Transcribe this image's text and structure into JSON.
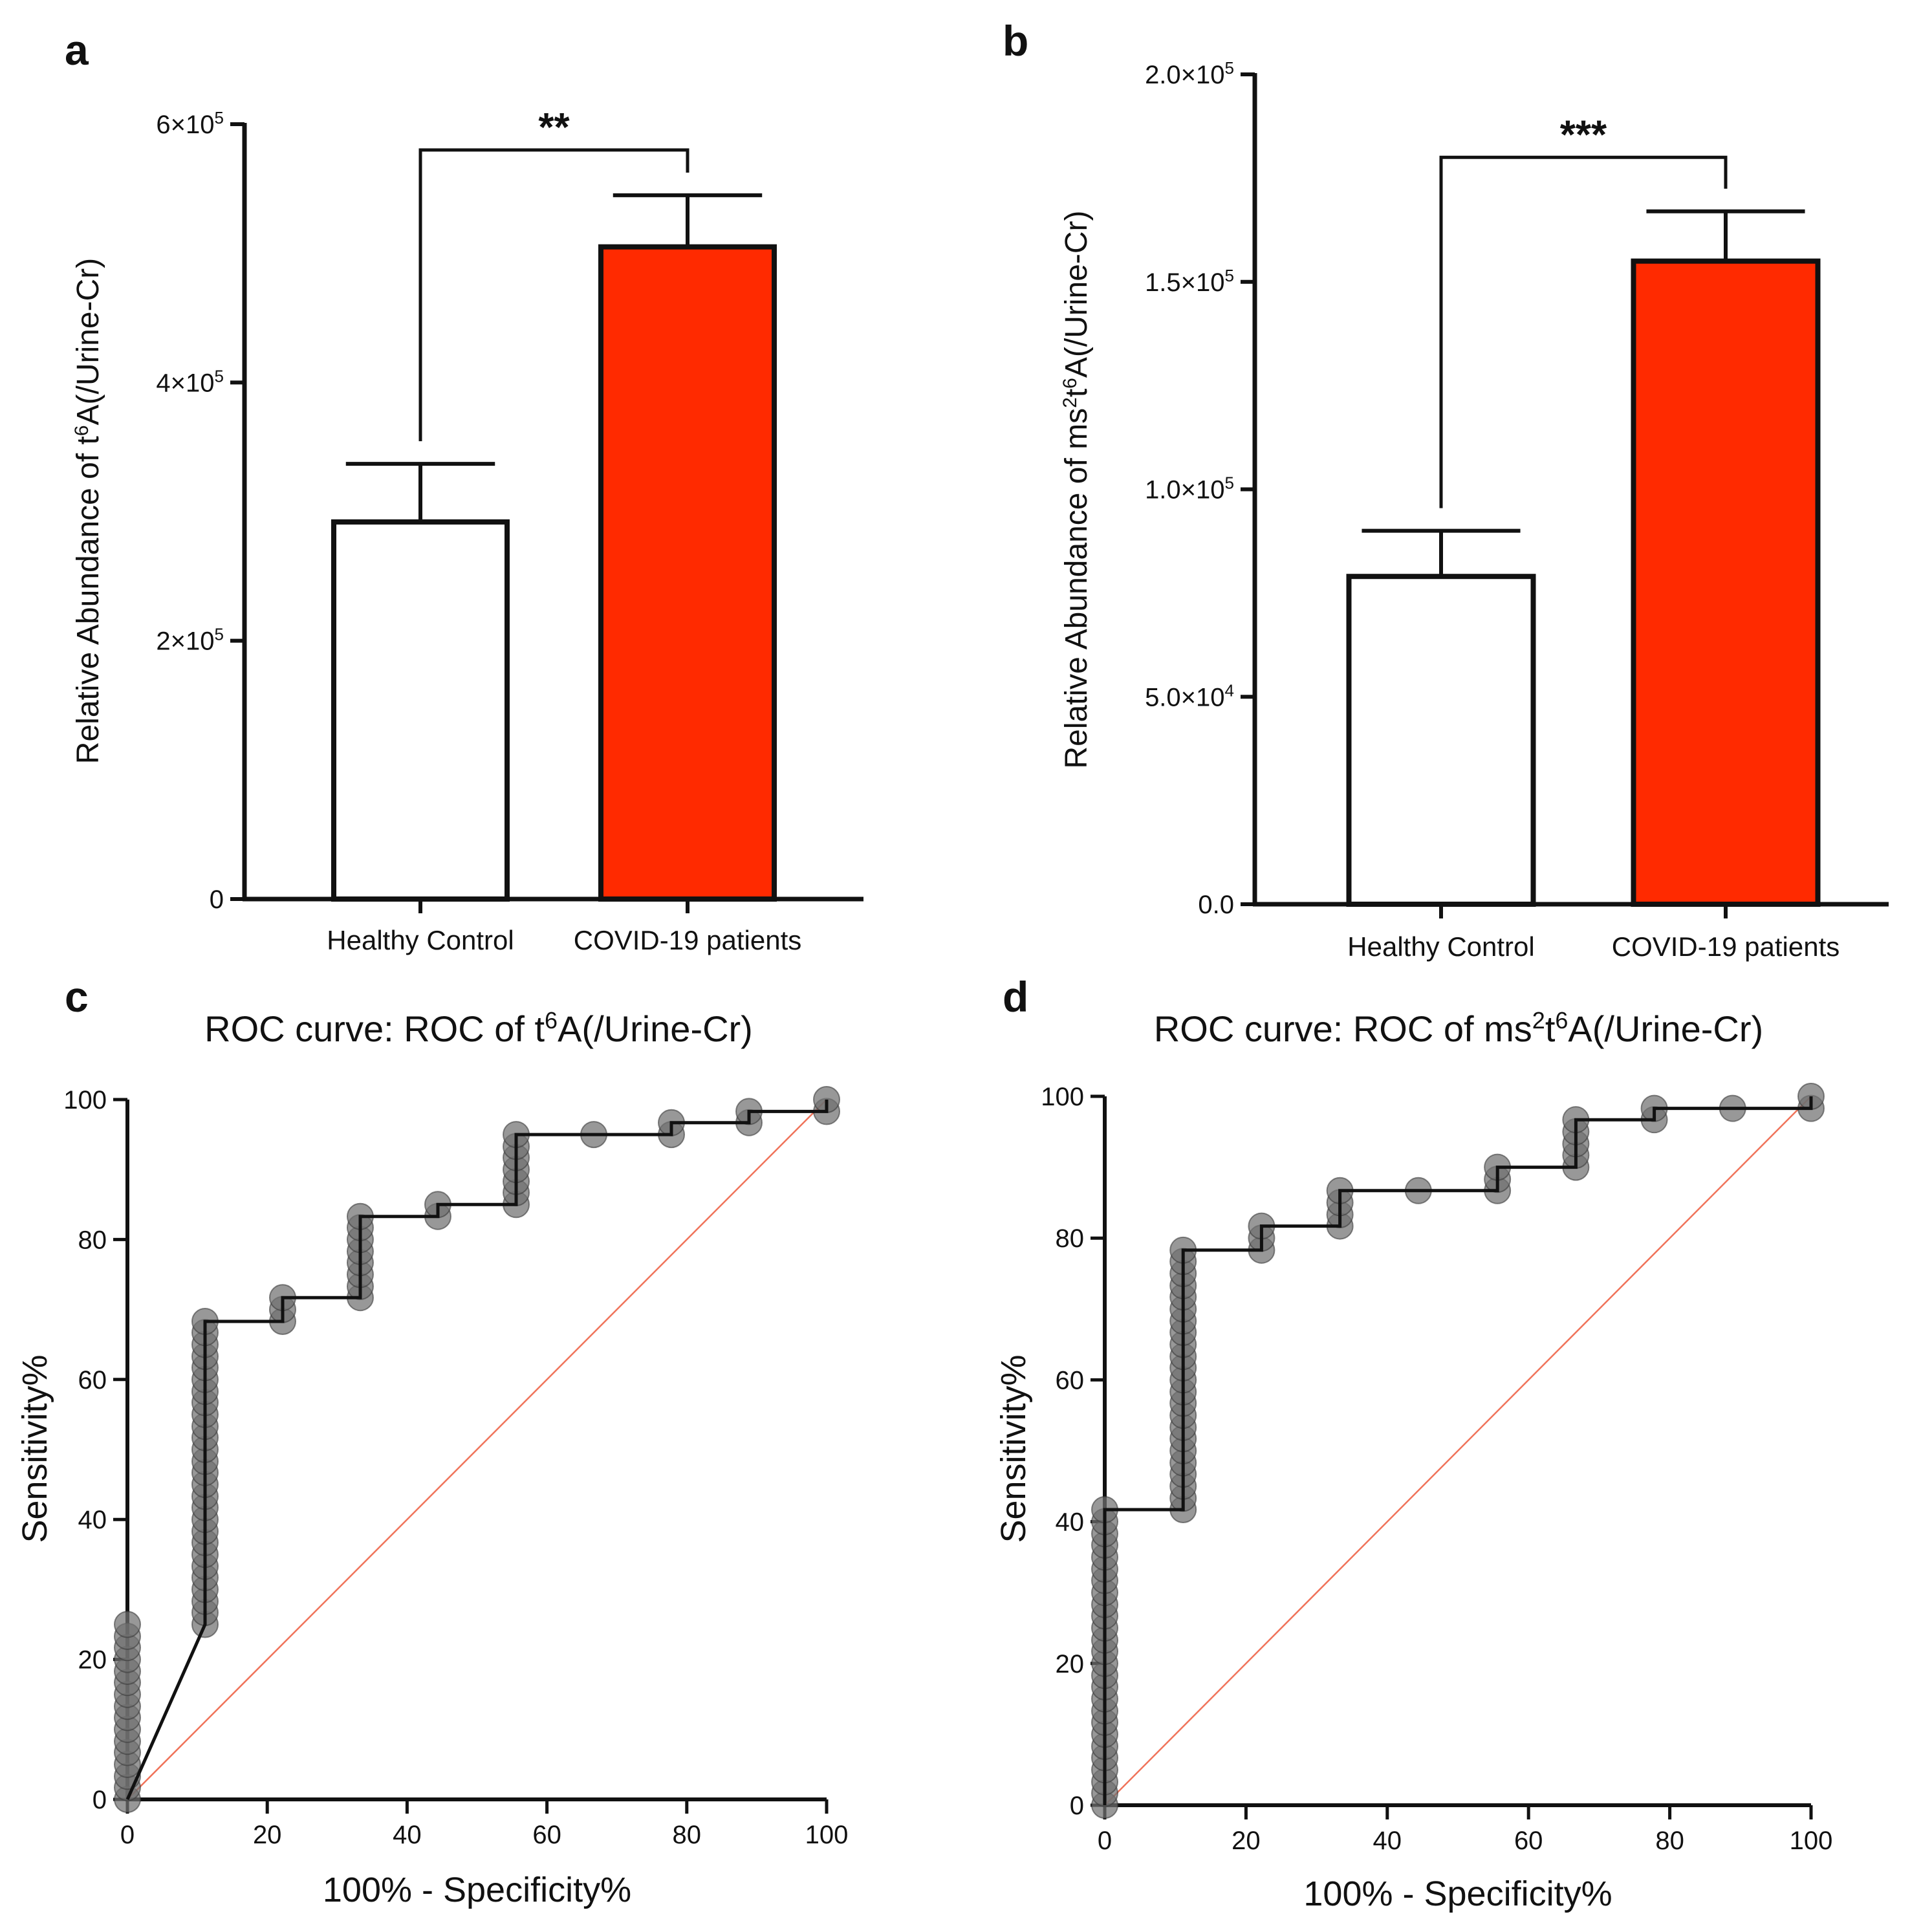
{
  "panels": {
    "a": {
      "label": "a"
    },
    "b": {
      "label": "b"
    },
    "c": {
      "label": "c"
    },
    "d": {
      "label": "d"
    }
  },
  "chart_data": [
    {
      "id": "a",
      "type": "bar",
      "categories": [
        "Healthy Control",
        "COVID-19 patients"
      ],
      "values": [
        292000,
        505000
      ],
      "errors": [
        45000,
        40000
      ],
      "bar_colors": [
        "#ffffff",
        "#ff2a00"
      ],
      "ylabel_prefix": "Relative  Abundance of t",
      "ylabel_sup": "6",
      "ylabel_suffix": "A(/Urine-Cr)",
      "ylim": [
        0,
        600000
      ],
      "yticks": [
        0,
        200000,
        400000,
        600000
      ],
      "ytick_labels": [
        {
          "base": "0",
          "exp": ""
        },
        {
          "base": "2×10",
          "exp": "5"
        },
        {
          "base": "4×10",
          "exp": "5"
        },
        {
          "base": "6×10",
          "exp": "5"
        }
      ],
      "significance": "**",
      "sig_level": 580000
    },
    {
      "id": "b",
      "type": "bar",
      "categories": [
        "Healthy Control",
        "COVID-19 patients"
      ],
      "values": [
        79000,
        155000
      ],
      "errors": [
        11000,
        12000
      ],
      "bar_colors": [
        "#ffffff",
        "#ff2a00"
      ],
      "ylabel_prefix": "Relative  Abundance of ms",
      "ylabel_sup": "2",
      "ylabel_mid": "t",
      "ylabel_sup2": "6",
      "ylabel_suffix": "A(/Urine-Cr)",
      "ylim": [
        0,
        200000
      ],
      "yticks": [
        0,
        50000,
        100000,
        150000,
        200000
      ],
      "ytick_labels": [
        {
          "base": "0.0",
          "exp": ""
        },
        {
          "base": "5.0×10",
          "exp": "4"
        },
        {
          "base": "1.0×10",
          "exp": "5"
        },
        {
          "base": "1.5×10",
          "exp": "5"
        },
        {
          "base": "2.0×10",
          "exp": "5"
        }
      ],
      "significance": "***",
      "sig_level": 180000
    },
    {
      "id": "c",
      "type": "line",
      "title_prefix": "ROC curve: ROC of t",
      "title_sup": "6",
      "title_suffix": "A(/Urine-Cr)",
      "xlabel": "100% - Specificity%",
      "ylabel": "Sensitivity%",
      "xlim": [
        0,
        100
      ],
      "ylim": [
        0,
        100
      ],
      "xticks": [
        0,
        20,
        40,
        60,
        80,
        100
      ],
      "yticks": [
        0,
        20,
        40,
        60,
        80,
        100
      ],
      "x": [
        0,
        11.1,
        11.1,
        22.2,
        22.2,
        33.3,
        33.3,
        44.4,
        44.4,
        55.6,
        55.6,
        66.7,
        77.8,
        77.8,
        88.9,
        88.9,
        100,
        100
      ],
      "y": [
        0,
        25,
        68.3,
        68.3,
        71.7,
        71.7,
        83.3,
        83.3,
        85,
        85,
        95,
        95,
        95,
        96.7,
        96.7,
        98.3,
        98.3,
        100
      ],
      "points": [
        [
          0,
          0
        ],
        [
          0,
          1.7
        ],
        [
          0,
          3.3
        ],
        [
          0,
          5
        ],
        [
          0,
          6.7
        ],
        [
          0,
          8.3
        ],
        [
          0,
          10
        ],
        [
          0,
          11.7
        ],
        [
          0,
          13.3
        ],
        [
          0,
          15
        ],
        [
          0,
          16.7
        ],
        [
          0,
          18.3
        ],
        [
          0,
          20
        ],
        [
          0,
          21.7
        ],
        [
          0,
          23.3
        ],
        [
          0,
          25
        ],
        [
          11.1,
          25
        ],
        [
          11.1,
          26.7
        ],
        [
          11.1,
          28.3
        ],
        [
          11.1,
          30
        ],
        [
          11.1,
          31.7
        ],
        [
          11.1,
          33.3
        ],
        [
          11.1,
          35
        ],
        [
          11.1,
          36.7
        ],
        [
          11.1,
          38.3
        ],
        [
          11.1,
          40
        ],
        [
          11.1,
          41.7
        ],
        [
          11.1,
          43.3
        ],
        [
          11.1,
          45
        ],
        [
          11.1,
          46.7
        ],
        [
          11.1,
          48.3
        ],
        [
          11.1,
          50
        ],
        [
          11.1,
          51.7
        ],
        [
          11.1,
          53.3
        ],
        [
          11.1,
          55
        ],
        [
          11.1,
          56.7
        ],
        [
          11.1,
          58.3
        ],
        [
          11.1,
          60
        ],
        [
          11.1,
          61.7
        ],
        [
          11.1,
          63.3
        ],
        [
          11.1,
          65
        ],
        [
          11.1,
          66.7
        ],
        [
          11.1,
          68.3
        ],
        [
          22.2,
          68.3
        ],
        [
          22.2,
          70
        ],
        [
          22.2,
          71.7
        ],
        [
          33.3,
          71.7
        ],
        [
          33.3,
          73.3
        ],
        [
          33.3,
          75
        ],
        [
          33.3,
          76.7
        ],
        [
          33.3,
          78.3
        ],
        [
          33.3,
          80
        ],
        [
          33.3,
          81.7
        ],
        [
          33.3,
          83.3
        ],
        [
          44.4,
          83.3
        ],
        [
          44.4,
          85
        ],
        [
          55.6,
          85
        ],
        [
          55.6,
          86.7
        ],
        [
          55.6,
          88.3
        ],
        [
          55.6,
          90
        ],
        [
          55.6,
          91.7
        ],
        [
          55.6,
          93.3
        ],
        [
          55.6,
          95
        ],
        [
          66.7,
          95
        ],
        [
          77.8,
          95
        ],
        [
          77.8,
          96.7
        ],
        [
          88.9,
          96.7
        ],
        [
          88.9,
          98.3
        ],
        [
          100,
          98.3
        ],
        [
          100,
          100
        ]
      ],
      "reference_line": [
        [
          0,
          0
        ],
        [
          100,
          100
        ]
      ]
    },
    {
      "id": "d",
      "type": "line",
      "title_prefix": "ROC curve: ROC of ms",
      "title_sup": "2",
      "title_mid": "t",
      "title_sup2": "6",
      "title_suffix": "A(/Urine-Cr)",
      "xlabel": "100% - Specificity%",
      "ylabel": "Sensitivity%",
      "xlim": [
        0,
        100
      ],
      "ylim": [
        0,
        100
      ],
      "xticks": [
        0,
        20,
        40,
        60,
        80,
        100
      ],
      "yticks": [
        0,
        20,
        40,
        60,
        80,
        100
      ],
      "x": [
        0,
        0,
        11.1,
        11.1,
        22.2,
        22.2,
        33.3,
        33.3,
        44.4,
        55.6,
        55.6,
        66.7,
        66.7,
        77.8,
        77.8,
        88.9,
        100,
        100
      ],
      "y": [
        0,
        41.7,
        41.7,
        78.3,
        78.3,
        81.7,
        81.7,
        86.7,
        86.7,
        86.7,
        90,
        90,
        96.7,
        96.7,
        98.3,
        98.3,
        98.3,
        100
      ],
      "points": [
        [
          0,
          0
        ],
        [
          0,
          1.7
        ],
        [
          0,
          3.3
        ],
        [
          0,
          5
        ],
        [
          0,
          6.7
        ],
        [
          0,
          8.3
        ],
        [
          0,
          10
        ],
        [
          0,
          11.7
        ],
        [
          0,
          13.3
        ],
        [
          0,
          15
        ],
        [
          0,
          16.7
        ],
        [
          0,
          18.3
        ],
        [
          0,
          20
        ],
        [
          0,
          21.7
        ],
        [
          0,
          23.3
        ],
        [
          0,
          25
        ],
        [
          0,
          26.7
        ],
        [
          0,
          28.3
        ],
        [
          0,
          30
        ],
        [
          0,
          31.7
        ],
        [
          0,
          33.3
        ],
        [
          0,
          35
        ],
        [
          0,
          36.7
        ],
        [
          0,
          38.3
        ],
        [
          0,
          40
        ],
        [
          0,
          41.7
        ],
        [
          11.1,
          41.7
        ],
        [
          11.1,
          43.3
        ],
        [
          11.1,
          45
        ],
        [
          11.1,
          46.7
        ],
        [
          11.1,
          48.3
        ],
        [
          11.1,
          50
        ],
        [
          11.1,
          51.7
        ],
        [
          11.1,
          53.3
        ],
        [
          11.1,
          55
        ],
        [
          11.1,
          56.7
        ],
        [
          11.1,
          58.3
        ],
        [
          11.1,
          60
        ],
        [
          11.1,
          61.7
        ],
        [
          11.1,
          63.3
        ],
        [
          11.1,
          65
        ],
        [
          11.1,
          66.7
        ],
        [
          11.1,
          68.3
        ],
        [
          11.1,
          70
        ],
        [
          11.1,
          71.7
        ],
        [
          11.1,
          73.3
        ],
        [
          11.1,
          75
        ],
        [
          11.1,
          76.7
        ],
        [
          11.1,
          78.3
        ],
        [
          22.2,
          78.3
        ],
        [
          22.2,
          80
        ],
        [
          22.2,
          81.7
        ],
        [
          33.3,
          81.7
        ],
        [
          33.3,
          83.3
        ],
        [
          33.3,
          85
        ],
        [
          33.3,
          86.7
        ],
        [
          44.4,
          86.7
        ],
        [
          55.6,
          86.7
        ],
        [
          55.6,
          88.3
        ],
        [
          55.6,
          90
        ],
        [
          66.7,
          90
        ],
        [
          66.7,
          91.7
        ],
        [
          66.7,
          93.3
        ],
        [
          66.7,
          95
        ],
        [
          66.7,
          96.7
        ],
        [
          77.8,
          96.7
        ],
        [
          77.8,
          98.3
        ],
        [
          88.9,
          98.3
        ],
        [
          100,
          98.3
        ],
        [
          100,
          100
        ]
      ],
      "reference_line": [
        [
          0,
          0
        ],
        [
          100,
          100
        ]
      ]
    }
  ]
}
